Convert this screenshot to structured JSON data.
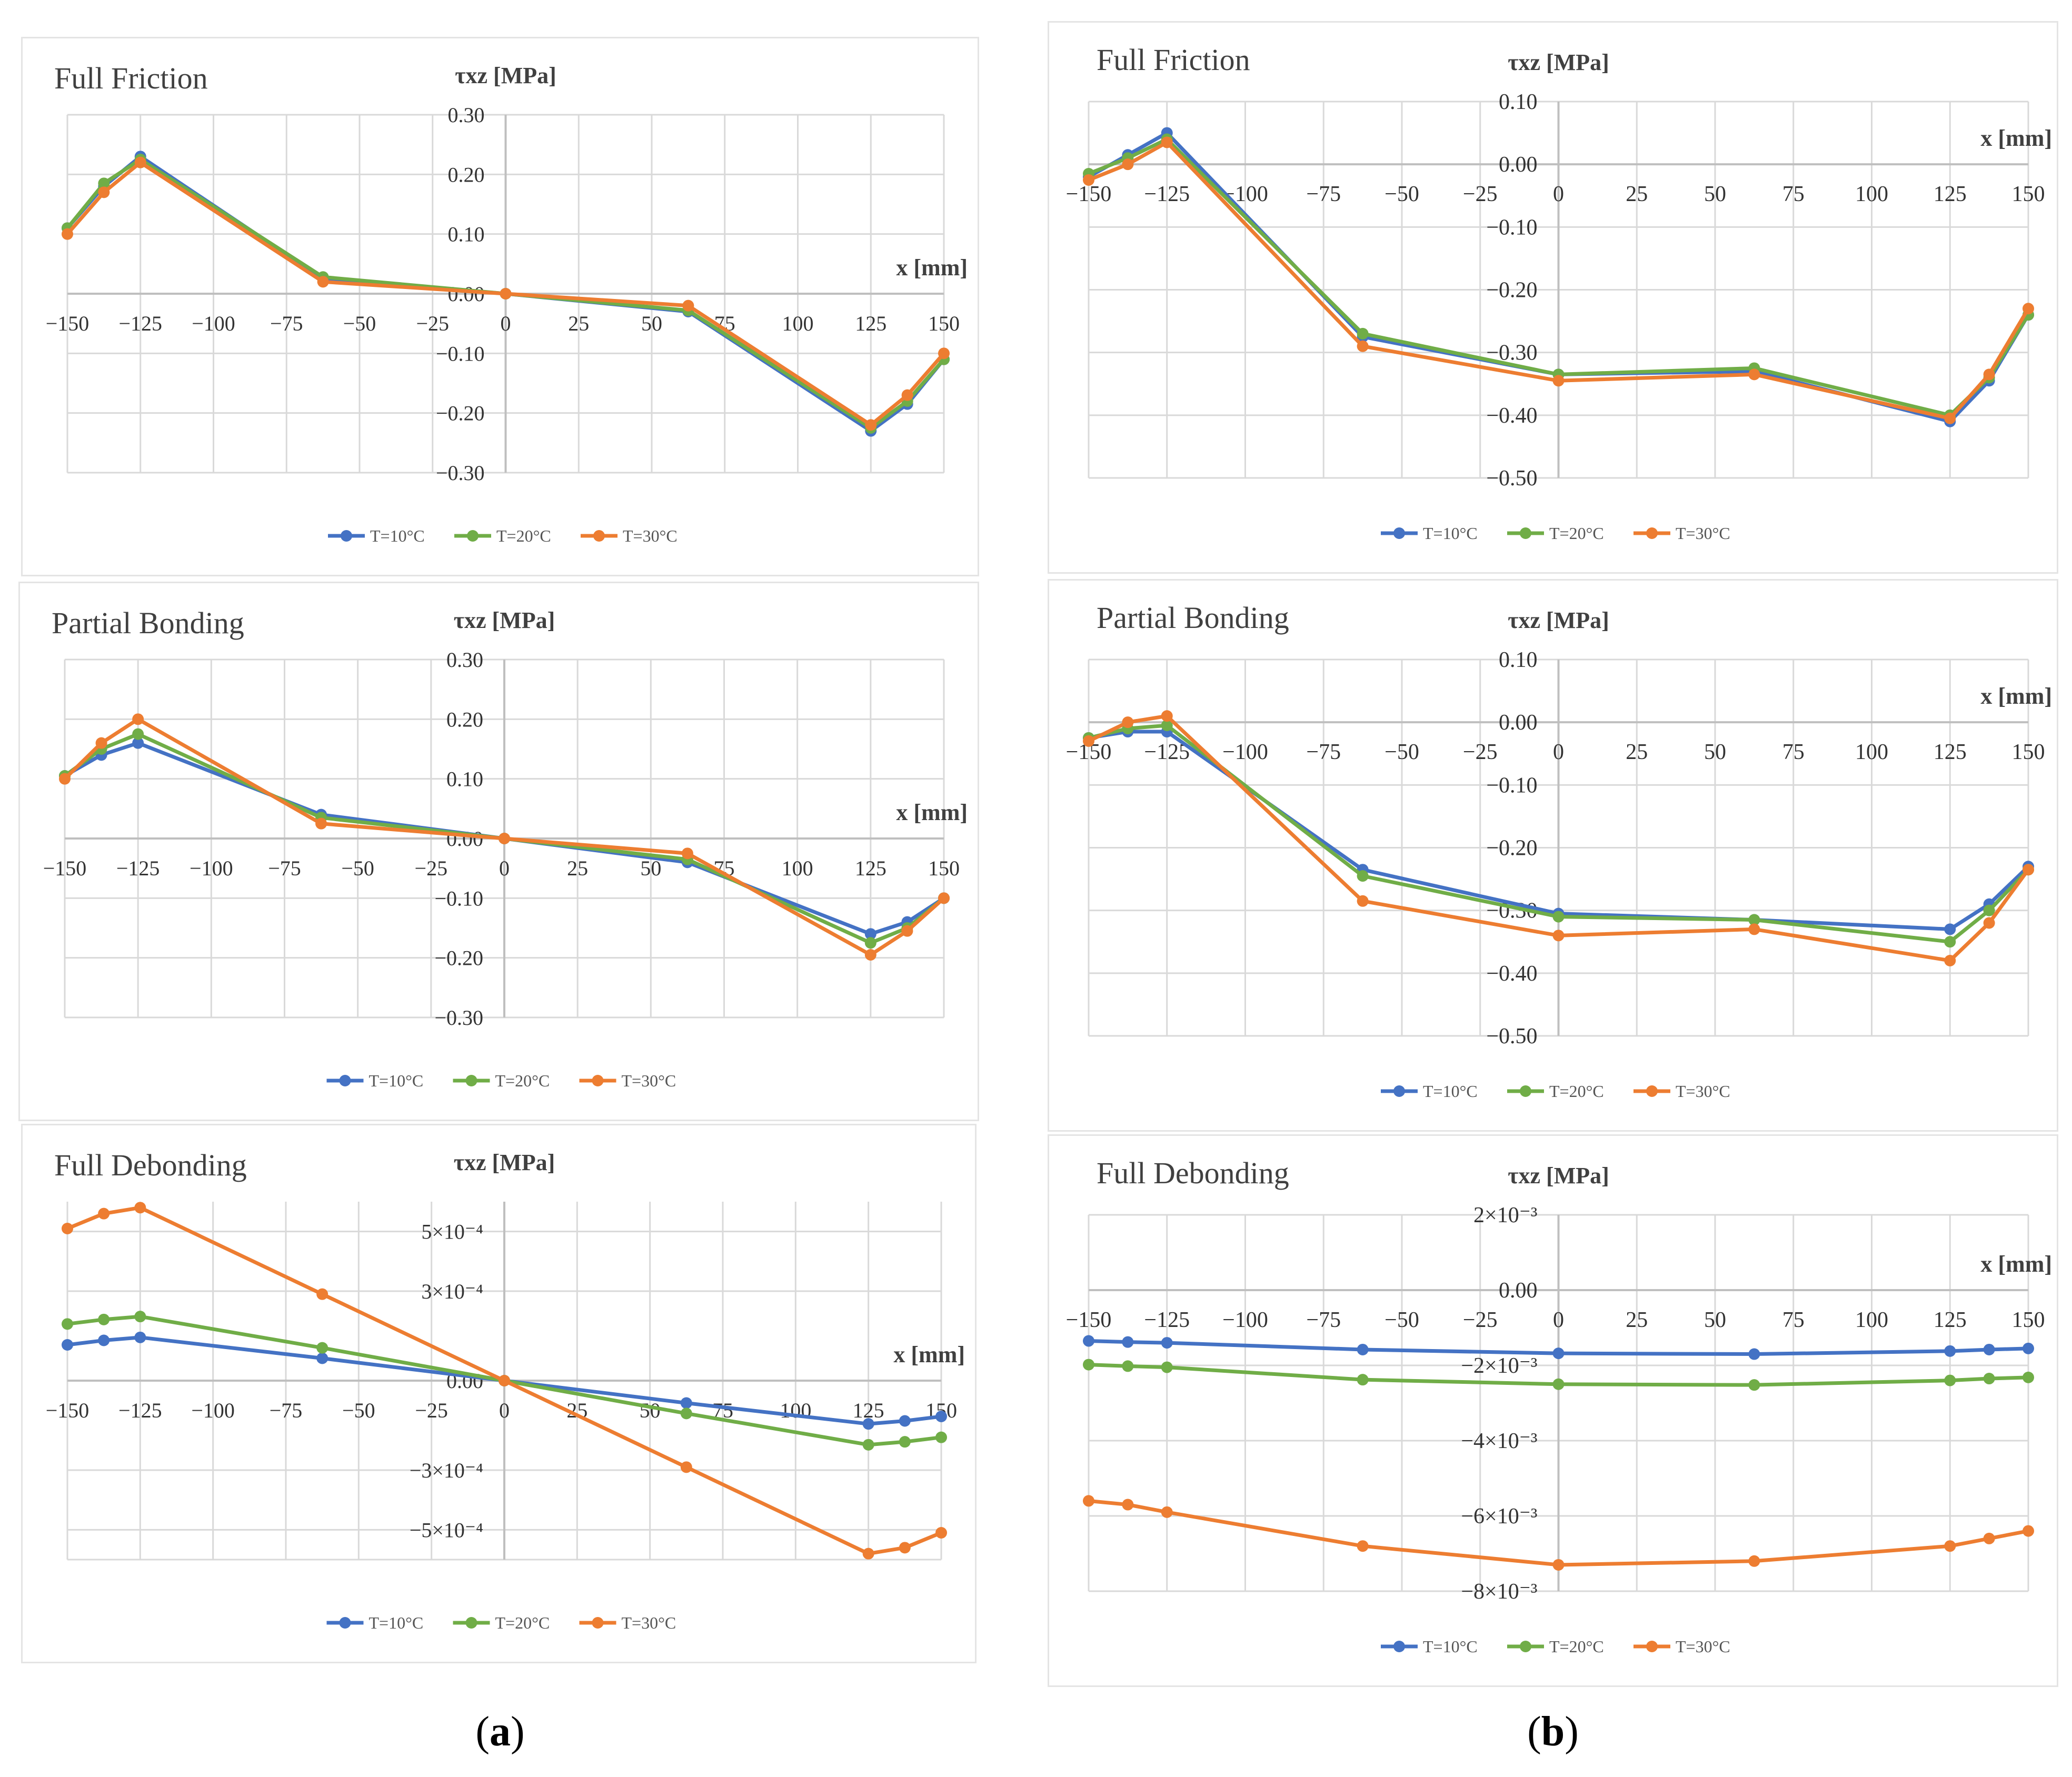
{
  "colors": {
    "T10": "#4472c4",
    "T20": "#70ad47",
    "T30": "#ed7d31",
    "grid": "#d9d9d9",
    "axis": "#bfbfbf"
  },
  "subfigure_labels": {
    "a": "a",
    "b": "b"
  },
  "chart_data": [
    {
      "id": "a-friction",
      "type": "line",
      "title": "Full Friction",
      "ylabel": "τxz [MPa]",
      "xlabel": "x [mm]",
      "xlim": [
        -150,
        150
      ],
      "ylim": [
        -0.3,
        0.3
      ],
      "x_ticks": [
        -150,
        -125,
        -100,
        -75,
        -50,
        -25,
        0,
        25,
        50,
        75,
        100,
        125,
        150
      ],
      "x_tick_labels": [
        "−150",
        "−125",
        "−100",
        "−75",
        "−50",
        "−25",
        "0",
        "25",
        "50",
        "75",
        "100",
        "125",
        "150"
      ],
      "y_ticks": [
        0.3,
        0.2,
        0.1,
        0.0,
        -0.1,
        -0.2,
        -0.3
      ],
      "y_tick_labels": [
        "0.30",
        "0.20",
        "0.10",
        "0.00",
        "−0.10",
        "−0.20",
        "−0.30"
      ],
      "x": [
        -150,
        -137.5,
        -125,
        -62.5,
        0,
        62.5,
        125,
        137.5,
        150
      ],
      "series": [
        {
          "name": "T=10°C",
          "color_key": "T10",
          "values": [
            0.11,
            0.18,
            0.23,
            0.025,
            0.0,
            -0.03,
            -0.23,
            -0.185,
            -0.11
          ]
        },
        {
          "name": "T=20°C",
          "color_key": "T20",
          "values": [
            0.11,
            0.185,
            0.225,
            0.028,
            0.0,
            -0.028,
            -0.225,
            -0.18,
            -0.11
          ]
        },
        {
          "name": "T=30°C",
          "color_key": "T30",
          "values": [
            0.1,
            0.17,
            0.22,
            0.02,
            0.0,
            -0.02,
            -0.22,
            -0.17,
            -0.1
          ]
        }
      ]
    },
    {
      "id": "b-friction",
      "type": "line",
      "title": "Full Friction",
      "ylabel": "τxz [MPa]",
      "xlabel": "x [mm]",
      "xlim": [
        -150,
        150
      ],
      "ylim": [
        -0.5,
        0.1
      ],
      "x_ticks": [
        -150,
        -125,
        -100,
        -75,
        -50,
        -25,
        0,
        25,
        50,
        75,
        100,
        125,
        150
      ],
      "x_tick_labels": [
        "−150",
        "−125",
        "−100",
        "−75",
        "−50",
        "−25",
        "0",
        "25",
        "50",
        "75",
        "100",
        "125",
        "150"
      ],
      "y_ticks": [
        0.1,
        0.0,
        -0.1,
        -0.2,
        -0.3,
        -0.4,
        -0.5
      ],
      "y_tick_labels": [
        "0.10",
        "0.00",
        "−0.10",
        "−0.20",
        "−0.30",
        "−0.40",
        "−0.50"
      ],
      "x": [
        -150,
        -137.5,
        -125,
        -62.5,
        0,
        62.5,
        125,
        137.5,
        150
      ],
      "series": [
        {
          "name": "T=10°C",
          "color_key": "T10",
          "values": [
            -0.02,
            0.015,
            0.05,
            -0.275,
            -0.335,
            -0.33,
            -0.41,
            -0.345,
            -0.24
          ]
        },
        {
          "name": "T=20°C",
          "color_key": "T20",
          "values": [
            -0.015,
            0.01,
            0.04,
            -0.27,
            -0.335,
            -0.325,
            -0.4,
            -0.34,
            -0.24
          ]
        },
        {
          "name": "T=30°C",
          "color_key": "T30",
          "values": [
            -0.025,
            0.0,
            0.035,
            -0.29,
            -0.345,
            -0.335,
            -0.405,
            -0.335,
            -0.23
          ]
        }
      ]
    },
    {
      "id": "a-partial",
      "type": "line",
      "title": "Partial Bonding",
      "ylabel": "τxz [MPa]",
      "xlabel": "x [mm]",
      "xlim": [
        -150,
        150
      ],
      "ylim": [
        -0.3,
        0.3
      ],
      "x_ticks": [
        -150,
        -125,
        -100,
        -75,
        -50,
        -25,
        0,
        25,
        50,
        75,
        100,
        125,
        150
      ],
      "x_tick_labels": [
        "−150",
        "−125",
        "−100",
        "−75",
        "−50",
        "−25",
        "0",
        "25",
        "50",
        "75",
        "100",
        "125",
        "150"
      ],
      "y_ticks": [
        0.3,
        0.2,
        0.1,
        0.0,
        -0.1,
        -0.2,
        -0.3
      ],
      "y_tick_labels": [
        "0.30",
        "0.20",
        "0.10",
        "0.00",
        "−0.10",
        "−0.20",
        "−0.30"
      ],
      "x": [
        -150,
        -137.5,
        -125,
        -62.5,
        0,
        62.5,
        125,
        137.5,
        150
      ],
      "series": [
        {
          "name": "T=10°C",
          "color_key": "T10",
          "values": [
            0.105,
            0.14,
            0.16,
            0.04,
            0.0,
            -0.04,
            -0.16,
            -0.14,
            -0.1
          ]
        },
        {
          "name": "T=20°C",
          "color_key": "T20",
          "values": [
            0.105,
            0.15,
            0.175,
            0.035,
            0.0,
            -0.035,
            -0.175,
            -0.15,
            -0.1
          ]
        },
        {
          "name": "T=30°C",
          "color_key": "T30",
          "values": [
            0.1,
            0.16,
            0.2,
            0.025,
            0.0,
            -0.025,
            -0.195,
            -0.155,
            -0.1
          ]
        }
      ]
    },
    {
      "id": "b-partial",
      "type": "line",
      "title": "Partial Bonding",
      "ylabel": "τxz [MPa]",
      "xlabel": "x [mm]",
      "xlim": [
        -150,
        150
      ],
      "ylim": [
        -0.5,
        0.1
      ],
      "x_ticks": [
        -150,
        -125,
        -100,
        -75,
        -50,
        -25,
        0,
        25,
        50,
        75,
        100,
        125,
        150
      ],
      "x_tick_labels": [
        "−150",
        "−125",
        "−100",
        "−75",
        "−50",
        "−25",
        "0",
        "25",
        "50",
        "75",
        "100",
        "125",
        "150"
      ],
      "y_ticks": [
        0.1,
        0.0,
        -0.1,
        -0.2,
        -0.3,
        -0.4,
        -0.5
      ],
      "y_tick_labels": [
        "0.10",
        "0.00",
        "−0.10",
        "−0.20",
        "−0.30",
        "−0.40",
        "−0.50"
      ],
      "x": [
        -150,
        -137.5,
        -125,
        -62.5,
        0,
        62.5,
        125,
        137.5,
        150
      ],
      "series": [
        {
          "name": "T=10°C",
          "color_key": "T10",
          "values": [
            -0.025,
            -0.015,
            -0.015,
            -0.235,
            -0.305,
            -0.315,
            -0.33,
            -0.29,
            -0.23
          ]
        },
        {
          "name": "T=20°C",
          "color_key": "T20",
          "values": [
            -0.025,
            -0.01,
            -0.005,
            -0.245,
            -0.31,
            -0.315,
            -0.35,
            -0.3,
            -0.235
          ]
        },
        {
          "name": "T=30°C",
          "color_key": "T30",
          "values": [
            -0.03,
            0.0,
            0.01,
            -0.285,
            -0.34,
            -0.33,
            -0.38,
            -0.32,
            -0.235
          ]
        }
      ]
    },
    {
      "id": "a-debonding",
      "type": "line",
      "title": "Full Debonding",
      "ylabel": "τxz [MPa]",
      "xlabel": "x [mm]",
      "xlim": [
        -150,
        150
      ],
      "ylim": [
        -0.0006,
        0.0006
      ],
      "x_ticks": [
        -150,
        -125,
        -100,
        -75,
        -50,
        -25,
        0,
        25,
        50,
        75,
        100,
        125,
        150
      ],
      "x_tick_labels": [
        "−150",
        "−125",
        "−100",
        "−75",
        "−50",
        "−25",
        "0",
        "25",
        "50",
        "75",
        "100",
        "125",
        "150"
      ],
      "y_ticks": [
        0.0005,
        0.0003,
        0.0,
        -0.0003,
        -0.0005
      ],
      "y_tick_labels": [
        "5×10⁻⁴",
        "3×10⁻⁴",
        "0.00",
        "−3×10⁻⁴",
        "−5×10⁻⁴"
      ],
      "x": [
        -150,
        -137.5,
        -125,
        -62.5,
        0,
        62.5,
        125,
        137.5,
        150
      ],
      "series": [
        {
          "name": "T=10°C",
          "color_key": "T10",
          "values": [
            0.00012,
            0.000135,
            0.000145,
            7.5e-05,
            0.0,
            -7.5e-05,
            -0.000145,
            -0.000135,
            -0.00012
          ]
        },
        {
          "name": "T=20°C",
          "color_key": "T20",
          "values": [
            0.00019,
            0.000205,
            0.000215,
            0.00011,
            0.0,
            -0.00011,
            -0.000215,
            -0.000205,
            -0.00019
          ]
        },
        {
          "name": "T=30°C",
          "color_key": "T30",
          "values": [
            0.00051,
            0.00056,
            0.00058,
            0.00029,
            0.0,
            -0.00029,
            -0.00058,
            -0.00056,
            -0.00051
          ]
        }
      ]
    },
    {
      "id": "b-debonding",
      "type": "line",
      "title": "Full Debonding",
      "ylabel": "τxz [MPa]",
      "xlabel": "x [mm]",
      "xlim": [
        -150,
        150
      ],
      "ylim": [
        -0.008,
        0.002
      ],
      "x_ticks": [
        -150,
        -125,
        -100,
        -75,
        -50,
        -25,
        0,
        25,
        50,
        75,
        100,
        125,
        150
      ],
      "x_tick_labels": [
        "−150",
        "−125",
        "−100",
        "−75",
        "−50",
        "−25",
        "0",
        "25",
        "50",
        "75",
        "100",
        "125",
        "150"
      ],
      "y_ticks": [
        0.002,
        0.0,
        -0.002,
        -0.004,
        -0.006,
        -0.008
      ],
      "y_tick_labels": [
        "2×10⁻³",
        "0.00",
        "−2×10⁻³",
        "−4×10⁻³",
        "−6×10⁻³",
        "−8×10⁻³"
      ],
      "x": [
        -150,
        -137.5,
        -125,
        -62.5,
        0,
        62.5,
        125,
        137.5,
        150
      ],
      "series": [
        {
          "name": "T=10°C",
          "color_key": "T10",
          "values": [
            -0.00135,
            -0.00138,
            -0.0014,
            -0.00158,
            -0.00168,
            -0.0017,
            -0.00162,
            -0.00158,
            -0.00155
          ]
        },
        {
          "name": "T=20°C",
          "color_key": "T20",
          "values": [
            -0.00198,
            -0.00202,
            -0.00205,
            -0.00238,
            -0.0025,
            -0.00252,
            -0.0024,
            -0.00235,
            -0.00232
          ]
        },
        {
          "name": "T=30°C",
          "color_key": "T30",
          "values": [
            -0.0056,
            -0.0057,
            -0.0059,
            -0.0068,
            -0.0073,
            -0.0072,
            -0.0068,
            -0.0066,
            -0.0064
          ]
        }
      ]
    }
  ]
}
